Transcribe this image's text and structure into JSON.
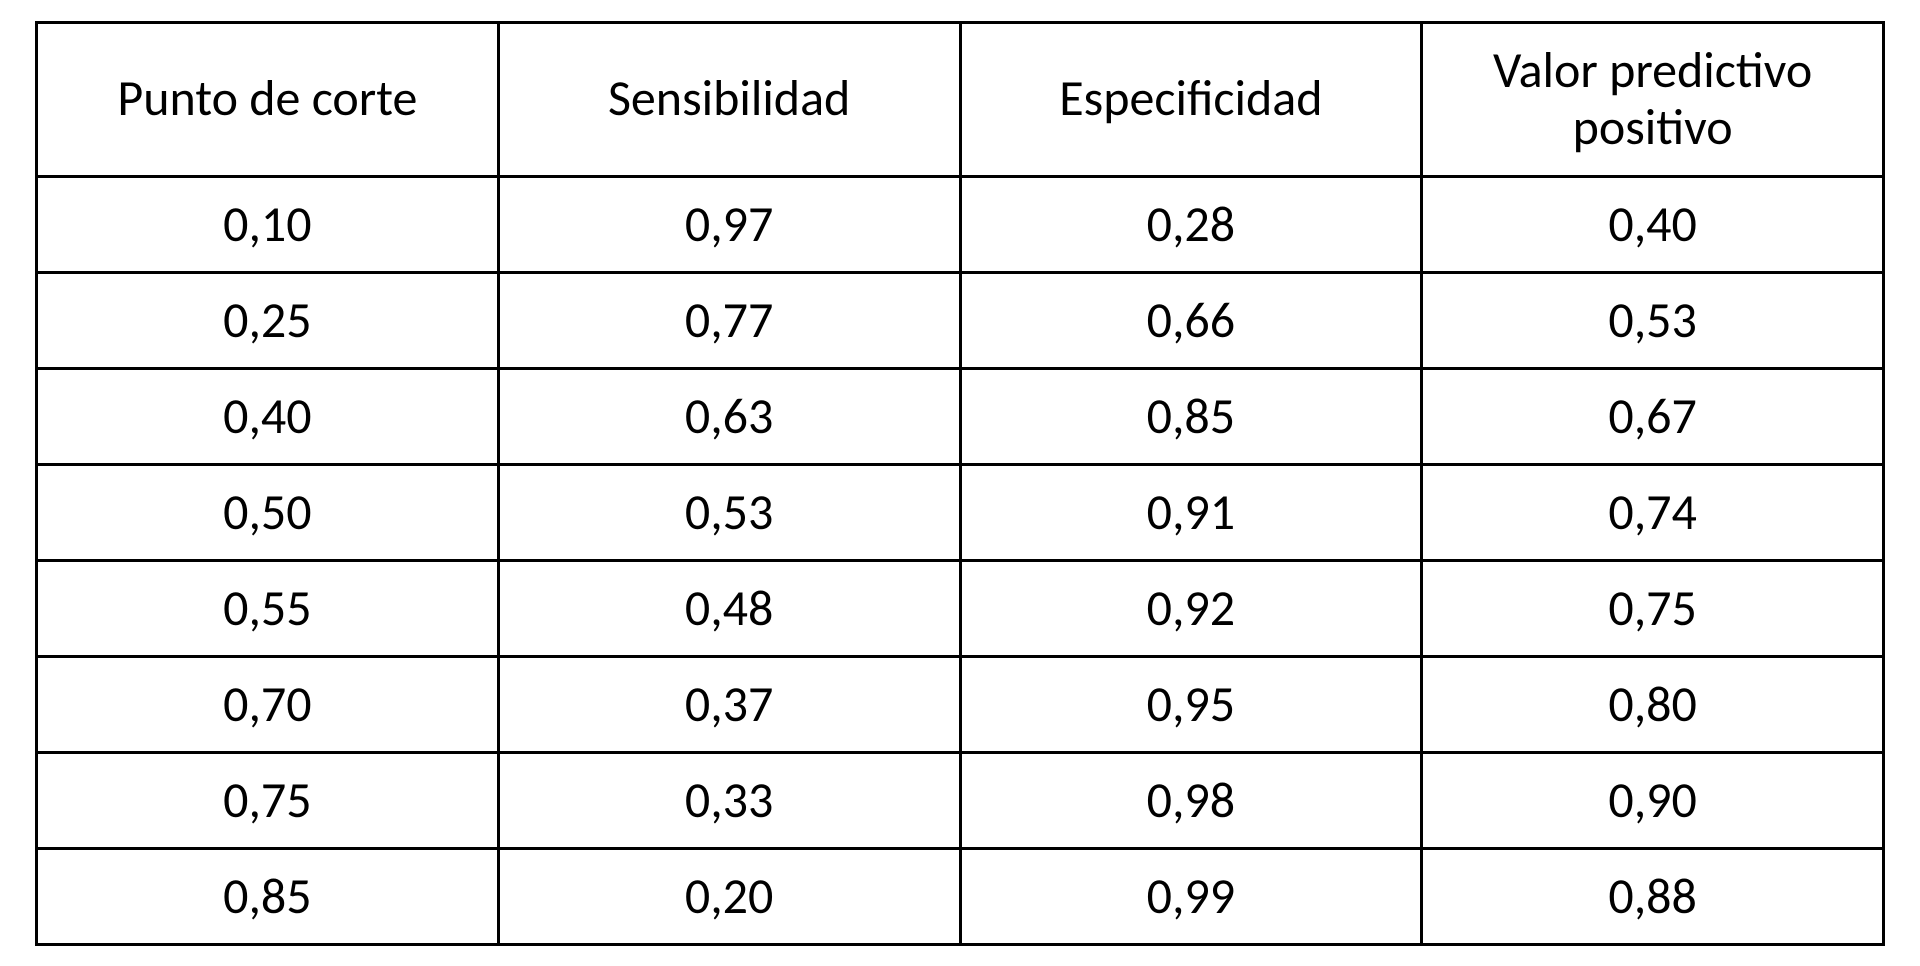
{
  "table": {
    "type": "table",
    "columns": [
      "Punto de corte",
      "Sensibilidad",
      "Especificidad",
      "Valor predictivo positivo"
    ],
    "rows": [
      [
        "0,10",
        "0,97",
        "0,28",
        "0,40"
      ],
      [
        "0,25",
        "0,77",
        "0,66",
        "0,53"
      ],
      [
        "0,40",
        "0,63",
        "0,85",
        "0,67"
      ],
      [
        "0,50",
        "0,53",
        "0,91",
        "0,74"
      ],
      [
        "0,55",
        "0,48",
        "0,92",
        "0,75"
      ],
      [
        "0,70",
        "0,37",
        "0,95",
        "0,80"
      ],
      [
        "0,75",
        "0,33",
        "0,98",
        "0,90"
      ],
      [
        "0,85",
        "0,20",
        "0,99",
        "0,88"
      ]
    ],
    "border_color": "#000000",
    "border_width": 3,
    "background_color": "#ffffff",
    "text_color": "#000000",
    "header_fontsize": 50,
    "cell_fontsize": 50,
    "font_family": "Calibri",
    "column_widths": [
      "25%",
      "25%",
      "25%",
      "25%"
    ],
    "alignment": "center"
  }
}
